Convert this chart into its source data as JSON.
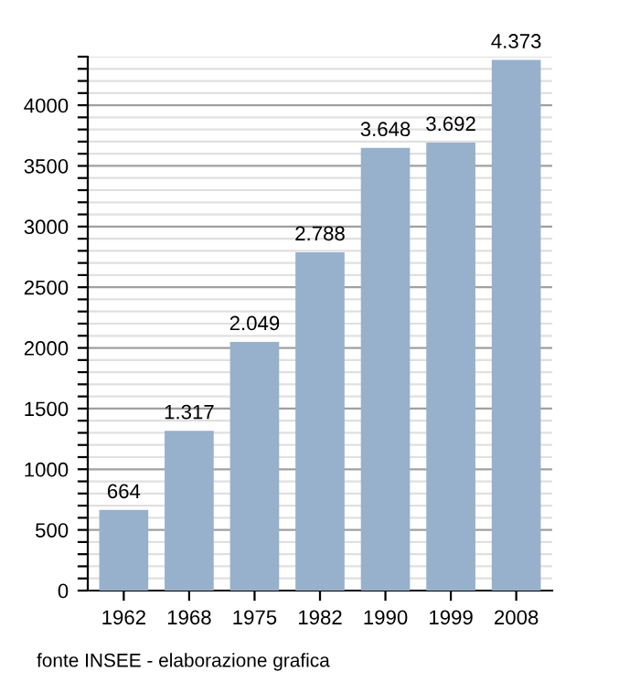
{
  "chart_data": {
    "type": "bar",
    "categories": [
      "1962",
      "1968",
      "1975",
      "1982",
      "1990",
      "1999",
      "2008"
    ],
    "values": [
      664,
      1317,
      2049,
      2788,
      3648,
      3692,
      4373
    ],
    "value_labels": [
      "664",
      "1.317",
      "2.049",
      "2.788",
      "3.648",
      "3.692",
      "4.373"
    ],
    "color": "#97b0cc",
    "ylim": [
      0,
      4400
    ],
    "yticks": [
      0,
      {
        "value": 100,
        "label": null
      },
      {
        "value": 200,
        "label": null
      },
      {
        "value": 300,
        "label": null
      },
      {
        "value": 400,
        "label": null
      },
      500,
      {
        "value": 600,
        "label": null
      },
      {
        "value": 700,
        "label": null
      },
      {
        "value": 800,
        "label": null
      },
      {
        "value": 900,
        "label": null
      },
      1000,
      {
        "value": 1100,
        "label": null
      },
      {
        "value": 1200,
        "label": null
      },
      {
        "value": 1300,
        "label": null
      },
      {
        "value": 1400,
        "label": null
      },
      1500,
      {
        "value": 1600,
        "label": null
      },
      {
        "value": 1700,
        "label": null
      },
      {
        "value": 1800,
        "label": null
      },
      {
        "value": 1900,
        "label": null
      },
      2000,
      {
        "value": 2100,
        "label": null
      },
      {
        "value": 2200,
        "label": null
      },
      {
        "value": 2300,
        "label": null
      },
      {
        "value": 2400,
        "label": null
      },
      2500,
      {
        "value": 2600,
        "label": null
      },
      {
        "value": 2700,
        "label": null
      },
      {
        "value": 2800,
        "label": null
      },
      {
        "value": 2900,
        "label": null
      },
      3000,
      {
        "value": 3100,
        "label": null
      },
      {
        "value": 3200,
        "label": null
      },
      {
        "value": 3300,
        "label": null
      },
      {
        "value": 3400,
        "label": null
      },
      3500,
      {
        "value": 3600,
        "label": null
      },
      {
        "value": 3700,
        "label": null
      },
      {
        "value": 3800,
        "label": null
      },
      {
        "value": 3900,
        "label": null
      },
      4000,
      {
        "value": 4100,
        "label": null
      },
      {
        "value": 4200,
        "label": null
      },
      {
        "value": 4300,
        "label": null
      },
      {
        "value": 4400,
        "label": null
      }
    ],
    "grid": "y",
    "annotations": [
      "fonte INSEE - elaborazione grafica"
    ]
  }
}
